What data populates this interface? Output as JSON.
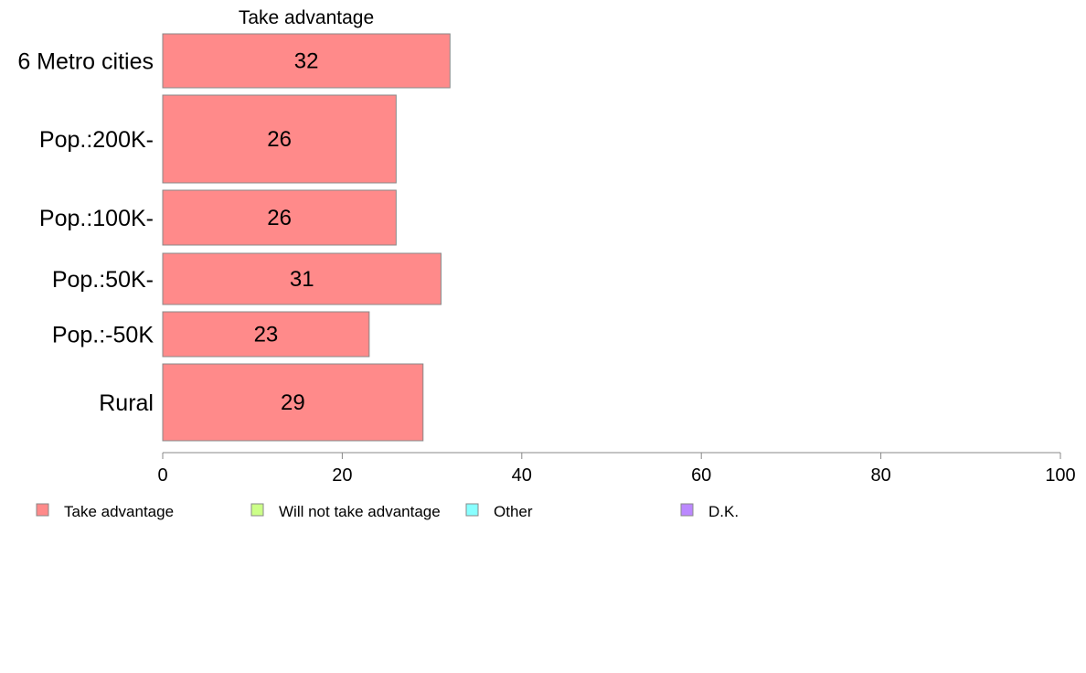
{
  "chart_data": {
    "type": "bar",
    "orientation": "horizontal",
    "title": "Take advantage",
    "categories": [
      "6 Metro cities",
      "Pop.:200K-",
      "Pop.:100K-",
      "Pop.:50K-",
      "Pop.:-50K",
      "Rural"
    ],
    "series": [
      {
        "name": "Take advantage",
        "values": [
          32,
          26,
          26,
          31,
          23,
          29
        ],
        "color": "#ff8a8a"
      }
    ],
    "xlim": [
      0,
      100
    ],
    "xticks": [
      0,
      20,
      40,
      60,
      80,
      100
    ],
    "grid": false,
    "legend": {
      "placement": "bottom",
      "entries": [
        {
          "label": "Take advantage",
          "color": "#ff8a8a"
        },
        {
          "label": "Will not take advantage",
          "color": "#ccff88"
        },
        {
          "label": "Other",
          "color": "#88ffff"
        },
        {
          "label": "D.K.",
          "color": "#bb88ff"
        }
      ]
    }
  }
}
